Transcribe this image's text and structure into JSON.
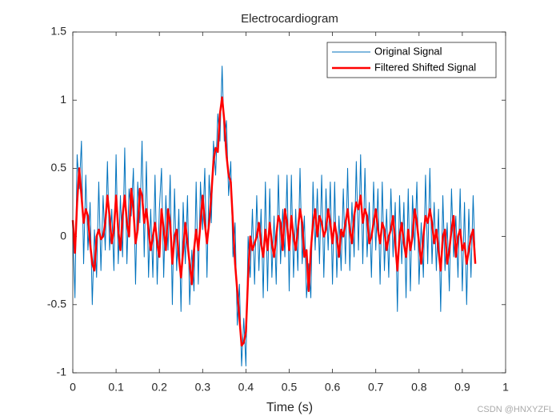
{
  "chart_data": {
    "type": "line",
    "title": "Electrocardiogram",
    "xlabel": "Time (s)",
    "watermark": "CSDN @HNXYZFL",
    "xlim": [
      0,
      1
    ],
    "xticks": [
      0,
      0.1,
      0.2,
      0.3,
      0.4,
      0.5,
      0.6,
      0.7,
      0.8,
      0.9,
      1
    ],
    "ylim": [
      -1,
      1.5
    ],
    "yticks": [
      -1,
      -0.5,
      0,
      0.5,
      1,
      1.5
    ],
    "grid": false,
    "legend": "upper right",
    "x": [
      0,
      0.005,
      0.01,
      0.015,
      0.02,
      0.025,
      0.03,
      0.035,
      0.04,
      0.045,
      0.05,
      0.055,
      0.06,
      0.065,
      0.07,
      0.075,
      0.08,
      0.085,
      0.09,
      0.095,
      0.1,
      0.105,
      0.11,
      0.115,
      0.12,
      0.125,
      0.13,
      0.135,
      0.14,
      0.145,
      0.15,
      0.155,
      0.16,
      0.165,
      0.17,
      0.175,
      0.18,
      0.185,
      0.19,
      0.195,
      0.2,
      0.205,
      0.21,
      0.215,
      0.22,
      0.225,
      0.23,
      0.235,
      0.24,
      0.245,
      0.25,
      0.255,
      0.26,
      0.265,
      0.27,
      0.275,
      0.28,
      0.285,
      0.29,
      0.295,
      0.3,
      0.305,
      0.31,
      0.315,
      0.32,
      0.325,
      0.33,
      0.335,
      0.34,
      0.345,
      0.35,
      0.355,
      0.36,
      0.365,
      0.37,
      0.375,
      0.38,
      0.385,
      0.39,
      0.395,
      0.4,
      0.405,
      0.41,
      0.415,
      0.42,
      0.425,
      0.43,
      0.435,
      0.44,
      0.445,
      0.45,
      0.455,
      0.46,
      0.465,
      0.47,
      0.475,
      0.48,
      0.485,
      0.49,
      0.495,
      0.5,
      0.505,
      0.51,
      0.515,
      0.52,
      0.525,
      0.53,
      0.535,
      0.54,
      0.545,
      0.55,
      0.555,
      0.56,
      0.565,
      0.57,
      0.575,
      0.58,
      0.585,
      0.59,
      0.595,
      0.6,
      0.605,
      0.61,
      0.615,
      0.62,
      0.625,
      0.63,
      0.635,
      0.64,
      0.645,
      0.65,
      0.655,
      0.66,
      0.665,
      0.67,
      0.675,
      0.68,
      0.685,
      0.69,
      0.695,
      0.7,
      0.705,
      0.71,
      0.715,
      0.72,
      0.725,
      0.73,
      0.735,
      0.74,
      0.745,
      0.75,
      0.755,
      0.76,
      0.765,
      0.77,
      0.775,
      0.78,
      0.785,
      0.79,
      0.795,
      0.8,
      0.805,
      0.81,
      0.815,
      0.82,
      0.825,
      0.83,
      0.835,
      0.84,
      0.845,
      0.85,
      0.855,
      0.86,
      0.865,
      0.87,
      0.875,
      0.88,
      0.885,
      0.89,
      0.895,
      0.9,
      0.905,
      0.91,
      0.915,
      0.92,
      0.925,
      0.93
    ],
    "series": [
      {
        "name": "Original Signal",
        "color": "#0072BD",
        "width": 1,
        "values": [
          0.05,
          -0.45,
          0.6,
          0.35,
          0.7,
          -0.2,
          0.45,
          -0.1,
          0.25,
          -0.5,
          0.05,
          -0.3,
          0.4,
          -0.25,
          0.3,
          -0.1,
          0.55,
          -0.1,
          0.2,
          -0.25,
          0.6,
          -0.2,
          0.3,
          -0.15,
          0.65,
          -0.2,
          0.35,
          0.15,
          0.5,
          -0.35,
          0.4,
          0.1,
          0.7,
          -0.15,
          0.55,
          -0.3,
          0.2,
          -0.3,
          0.45,
          -0.35,
          0.2,
          0.5,
          -0.3,
          0.3,
          -0.1,
          0.45,
          -0.5,
          0.35,
          -0.25,
          0.2,
          -0.55,
          0.25,
          -0.2,
          0.3,
          -0.5,
          -0.1,
          -0.4,
          0.4,
          -0.35,
          0.4,
          0.05,
          0.5,
          -0.3,
          0.45,
          0.1,
          0.7,
          0.45,
          0.9,
          0.7,
          1.25,
          0.7,
          0.85,
          0.3,
          0.55,
          -0.15,
          0.1,
          -0.65,
          -0.35,
          -0.95,
          -0.6,
          -0.95,
          0.0,
          -0.3,
          0.2,
          -0.35,
          0.3,
          -0.25,
          0.2,
          -0.45,
          0.4,
          -0.4,
          0.35,
          -0.3,
          0.15,
          -0.35,
          0.45,
          -0.2,
          0.2,
          -0.15,
          0.45,
          -0.4,
          0.45,
          -0.3,
          0.2,
          -0.25,
          0.5,
          -0.2,
          0.15,
          -0.45,
          -0.2,
          -0.45,
          0.4,
          -0.1,
          0.35,
          -0.2,
          0.45,
          -0.3,
          0.35,
          -0.1,
          0.4,
          -0.35,
          0.4,
          -0.3,
          0.15,
          -0.25,
          0.35,
          -0.2,
          0.5,
          -0.25,
          0.25,
          -0.15,
          0.55,
          -0.1,
          0.6,
          -0.2,
          0.5,
          -0.15,
          0.25,
          -0.3,
          0.4,
          -0.1,
          0.35,
          -0.35,
          0.4,
          -0.25,
          0.2,
          -0.3,
          0.35,
          -0.15,
          0.25,
          -0.55,
          0.3,
          -0.2,
          0.25,
          -0.45,
          0.35,
          -0.4,
          0.3,
          -0.1,
          0.4,
          -0.35,
          0.1,
          -0.3,
          0.45,
          -0.2,
          0.5,
          -0.2,
          0.25,
          -0.25,
          0.2,
          -0.55,
          0.3,
          -0.25,
          0.1,
          -0.4,
          0.35,
          -0.15,
          0.15,
          -0.3,
          0.35,
          -0.4,
          0.25,
          -0.5,
          0.2,
          -0.3,
          0.3,
          -0.2
        ]
      },
      {
        "name": "Filtered Shifted Signal",
        "color": "#FF0000",
        "width": 2.5,
        "values": [
          0.12,
          -0.12,
          0.25,
          0.5,
          0.3,
          0.1,
          0.2,
          0.15,
          -0.05,
          -0.2,
          -0.25,
          0.0,
          0.05,
          -0.02,
          0.0,
          0.1,
          0.3,
          0.15,
          -0.05,
          0.05,
          0.3,
          0.05,
          -0.1,
          0.15,
          0.3,
          0.1,
          0.0,
          0.35,
          0.2,
          -0.05,
          0.05,
          0.35,
          0.3,
          0.1,
          0.2,
          0.05,
          -0.1,
          0.0,
          0.1,
          -0.05,
          -0.15,
          0.2,
          0.05,
          -0.1,
          0.2,
          0.1,
          -0.2,
          0.0,
          0.05,
          -0.15,
          -0.3,
          -0.1,
          0.1,
          -0.05,
          -0.2,
          -0.35,
          -0.1,
          0.05,
          -0.1,
          0.1,
          0.3,
          0.1,
          -0.05,
          0.1,
          0.3,
          0.55,
          0.65,
          0.62,
          0.9,
          1.02,
          0.85,
          0.6,
          0.45,
          0.4,
          0.1,
          -0.2,
          -0.4,
          -0.6,
          -0.8,
          -0.78,
          -0.7,
          -0.3,
          0.0,
          -0.1,
          -0.05,
          0.0,
          0.1,
          -0.05,
          -0.15,
          0.05,
          -0.1,
          0.1,
          -0.05,
          -0.15,
          0.0,
          0.15,
          0.1,
          -0.1,
          0.2,
          0.1,
          -0.1,
          0.15,
          0.0,
          -0.1,
          0.05,
          0.2,
          0.1,
          -0.15,
          -0.1,
          -0.4,
          -0.1,
          0.1,
          0.2,
          0.0,
          0.15,
          0.1,
          0.0,
          0.05,
          0.2,
          0.1,
          -0.05,
          0.1,
          0.0,
          -0.15,
          0.05,
          0.0,
          0.1,
          0.2,
          0.05,
          -0.05,
          0.15,
          0.25,
          0.2,
          0.3,
          0.1,
          0.2,
          0.15,
          -0.05,
          0.0,
          0.1,
          0.2,
          0.05,
          -0.05,
          0.1,
          0.05,
          -0.1,
          0.0,
          0.05,
          0.15,
          -0.05,
          -0.25,
          0.0,
          0.1,
          -0.05,
          -0.15,
          0.05,
          -0.1,
          0.0,
          0.2,
          0.1,
          -0.05,
          -0.2,
          0.0,
          0.15,
          0.1,
          0.2,
          0.1,
          -0.05,
          0.05,
          -0.1,
          -0.25,
          0.0,
          0.05,
          -0.2,
          -0.1,
          0.05,
          0.15,
          -0.15,
          0.0,
          0.05,
          -0.1,
          -0.05,
          -0.2,
          -0.1,
          0.0,
          0.05,
          -0.2
        ]
      }
    ]
  }
}
